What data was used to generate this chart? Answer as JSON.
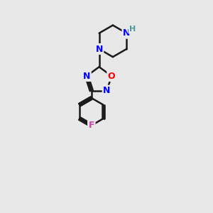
{
  "bg_color": "#e8e8e8",
  "bond_color": "#1a1a1a",
  "N_color": "#0000ff",
  "O_color": "#ff0000",
  "F_color": "#cc44aa",
  "NH_color": "#4a9999",
  "line_width": 1.8,
  "font_size_atom": 9,
  "fig_size": [
    3.0,
    3.0
  ],
  "dpi": 100,
  "xlim": [
    0,
    10
  ],
  "ylim": [
    0,
    10
  ]
}
